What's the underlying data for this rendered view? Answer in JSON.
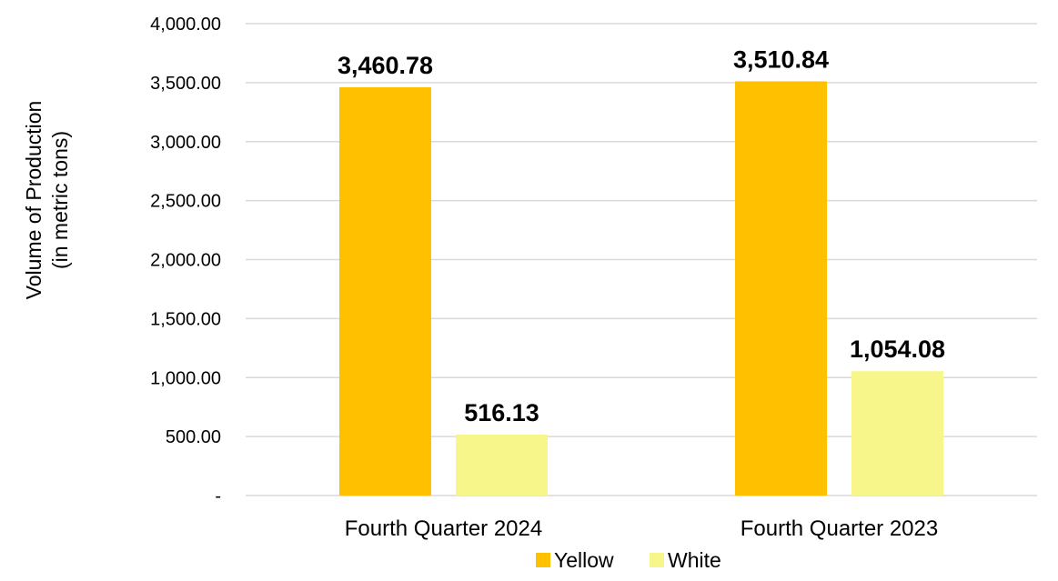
{
  "chart_data": {
    "type": "bar",
    "categories": [
      "Fourth Quarter 2024",
      "Fourth Quarter 2023"
    ],
    "series": [
      {
        "name": "Yellow",
        "color": "#FFC000",
        "values": [
          3460.78,
          3510.84
        ],
        "labels": [
          "3,460.78",
          "3,510.84"
        ]
      },
      {
        "name": "White",
        "color": "#F6F68A",
        "values": [
          516.13,
          1054.08
        ],
        "labels": [
          "516.13",
          "1,054.08"
        ]
      }
    ],
    "ylabel_line1": "Volume of Production",
    "ylabel_line2": "(in metric tons)",
    "xlabel": "",
    "title": "",
    "ylim": [
      0,
      4000
    ],
    "yticks": [
      0,
      500,
      1000,
      1500,
      2000,
      2500,
      3000,
      3500,
      4000
    ],
    "ytick_labels": [
      "-",
      "500.00",
      "1,000.00",
      "1,500.00",
      "2,000.00",
      "2,500.00",
      "3,000.00",
      "3,500.00",
      "4,000.00"
    ],
    "grid": true,
    "gridline_color": "#D9D9D9",
    "legend": {
      "position": "bottom"
    }
  }
}
